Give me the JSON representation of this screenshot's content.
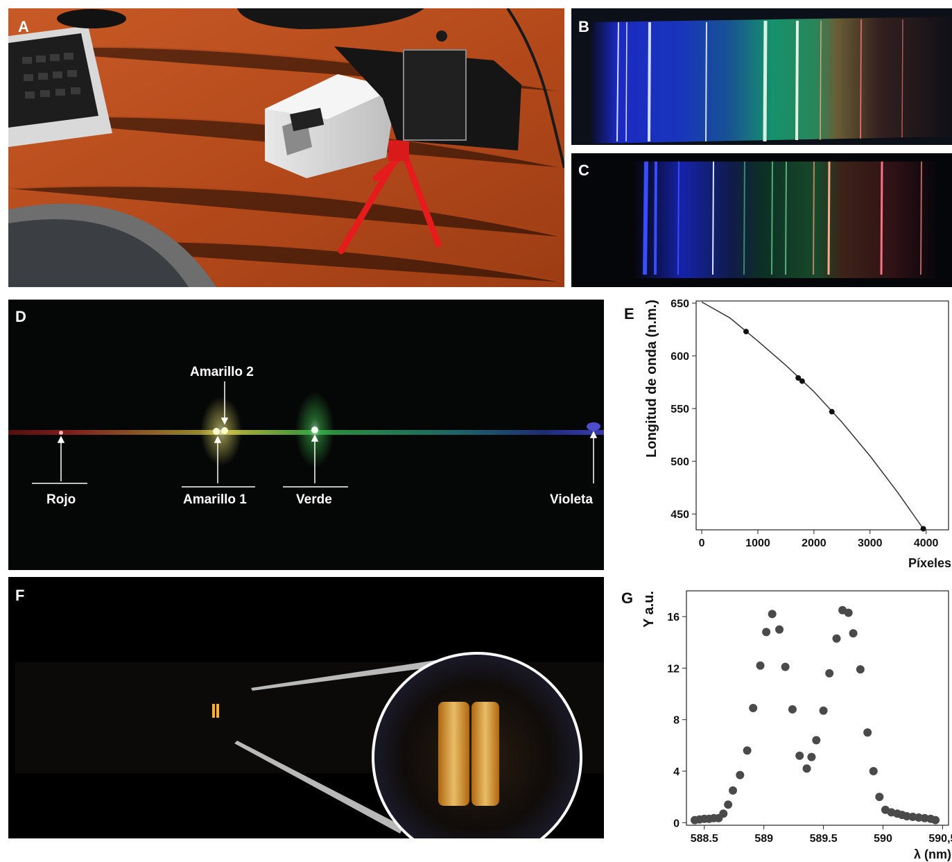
{
  "panels": {
    "a": {
      "label": "A"
    },
    "b": {
      "label": "B"
    },
    "c": {
      "label": "C"
    },
    "d": {
      "label": "D",
      "annotations": {
        "rojo": "Rojo",
        "amarillo1": "Amarillo 1",
        "amarillo2": "Amarillo 2",
        "verde": "Verde",
        "violeta": "Violeta"
      }
    },
    "e": {
      "label": "E"
    },
    "f": {
      "label": "F"
    },
    "g": {
      "label": "G"
    }
  },
  "chart_data": [
    {
      "panel": "E",
      "type": "scatter",
      "title": "",
      "xlabel": "Píxeles",
      "ylabel": "Longitud de onda (n.m.)",
      "xlim": [
        -100,
        4400
      ],
      "ylim": [
        435,
        652
      ],
      "xticks": [
        "0",
        "1000",
        "2000",
        "3000",
        "4000"
      ],
      "yticks": [
        "450",
        "500",
        "550",
        "600",
        "650"
      ],
      "points": [
        {
          "x": 790,
          "y": 623
        },
        {
          "x": 1720,
          "y": 579
        },
        {
          "x": 1790,
          "y": 576
        },
        {
          "x": 2320,
          "y": 547
        },
        {
          "x": 3950,
          "y": 436
        }
      ],
      "fit_curve": [
        {
          "x": 0,
          "y": 651
        },
        {
          "x": 500,
          "y": 636
        },
        {
          "x": 1000,
          "y": 614
        },
        {
          "x": 1500,
          "y": 591
        },
        {
          "x": 2000,
          "y": 566
        },
        {
          "x": 2500,
          "y": 537
        },
        {
          "x": 3000,
          "y": 505
        },
        {
          "x": 3500,
          "y": 470
        },
        {
          "x": 3950,
          "y": 436
        }
      ],
      "grid": false
    },
    {
      "panel": "G",
      "type": "scatter",
      "title": "",
      "xlabel": "λ (nm)",
      "ylabel": "Y a.u.",
      "xlim": [
        588.35,
        590.55
      ],
      "ylim": [
        -0.2,
        18
      ],
      "xticks": [
        "588.5",
        "589",
        "589.5",
        "590",
        "590,5"
      ],
      "yticks": [
        "0",
        "4",
        "8",
        "12",
        "16"
      ],
      "grid": false,
      "points": [
        {
          "x": 588.42,
          "y": 0.2
        },
        {
          "x": 588.46,
          "y": 0.25
        },
        {
          "x": 588.5,
          "y": 0.3
        },
        {
          "x": 588.54,
          "y": 0.3
        },
        {
          "x": 588.58,
          "y": 0.35
        },
        {
          "x": 588.62,
          "y": 0.35
        },
        {
          "x": 588.66,
          "y": 0.7
        },
        {
          "x": 588.7,
          "y": 1.4
        },
        {
          "x": 588.74,
          "y": 2.5
        },
        {
          "x": 588.8,
          "y": 3.7
        },
        {
          "x": 588.86,
          "y": 5.6
        },
        {
          "x": 588.91,
          "y": 8.9
        },
        {
          "x": 588.97,
          "y": 12.2
        },
        {
          "x": 589.02,
          "y": 14.8
        },
        {
          "x": 589.07,
          "y": 16.2
        },
        {
          "x": 589.13,
          "y": 15.0
        },
        {
          "x": 589.18,
          "y": 12.1
        },
        {
          "x": 589.24,
          "y": 8.8
        },
        {
          "x": 589.3,
          "y": 5.2
        },
        {
          "x": 589.36,
          "y": 4.2
        },
        {
          "x": 589.4,
          "y": 5.1
        },
        {
          "x": 589.44,
          "y": 6.4
        },
        {
          "x": 589.5,
          "y": 8.7
        },
        {
          "x": 589.55,
          "y": 11.6
        },
        {
          "x": 589.61,
          "y": 14.3
        },
        {
          "x": 589.66,
          "y": 16.5
        },
        {
          "x": 589.71,
          "y": 16.3
        },
        {
          "x": 589.75,
          "y": 14.7
        },
        {
          "x": 589.81,
          "y": 11.9
        },
        {
          "x": 589.87,
          "y": 7.0
        },
        {
          "x": 589.92,
          "y": 4.0
        },
        {
          "x": 589.97,
          "y": 2.0
        },
        {
          "x": 590.02,
          "y": 1.0
        },
        {
          "x": 590.07,
          "y": 0.8
        },
        {
          "x": 590.12,
          "y": 0.7
        },
        {
          "x": 590.16,
          "y": 0.6
        },
        {
          "x": 590.2,
          "y": 0.5
        },
        {
          "x": 590.25,
          "y": 0.45
        },
        {
          "x": 590.3,
          "y": 0.4
        },
        {
          "x": 590.35,
          "y": 0.35
        },
        {
          "x": 590.4,
          "y": 0.3
        },
        {
          "x": 590.44,
          "y": 0.2
        }
      ]
    }
  ]
}
